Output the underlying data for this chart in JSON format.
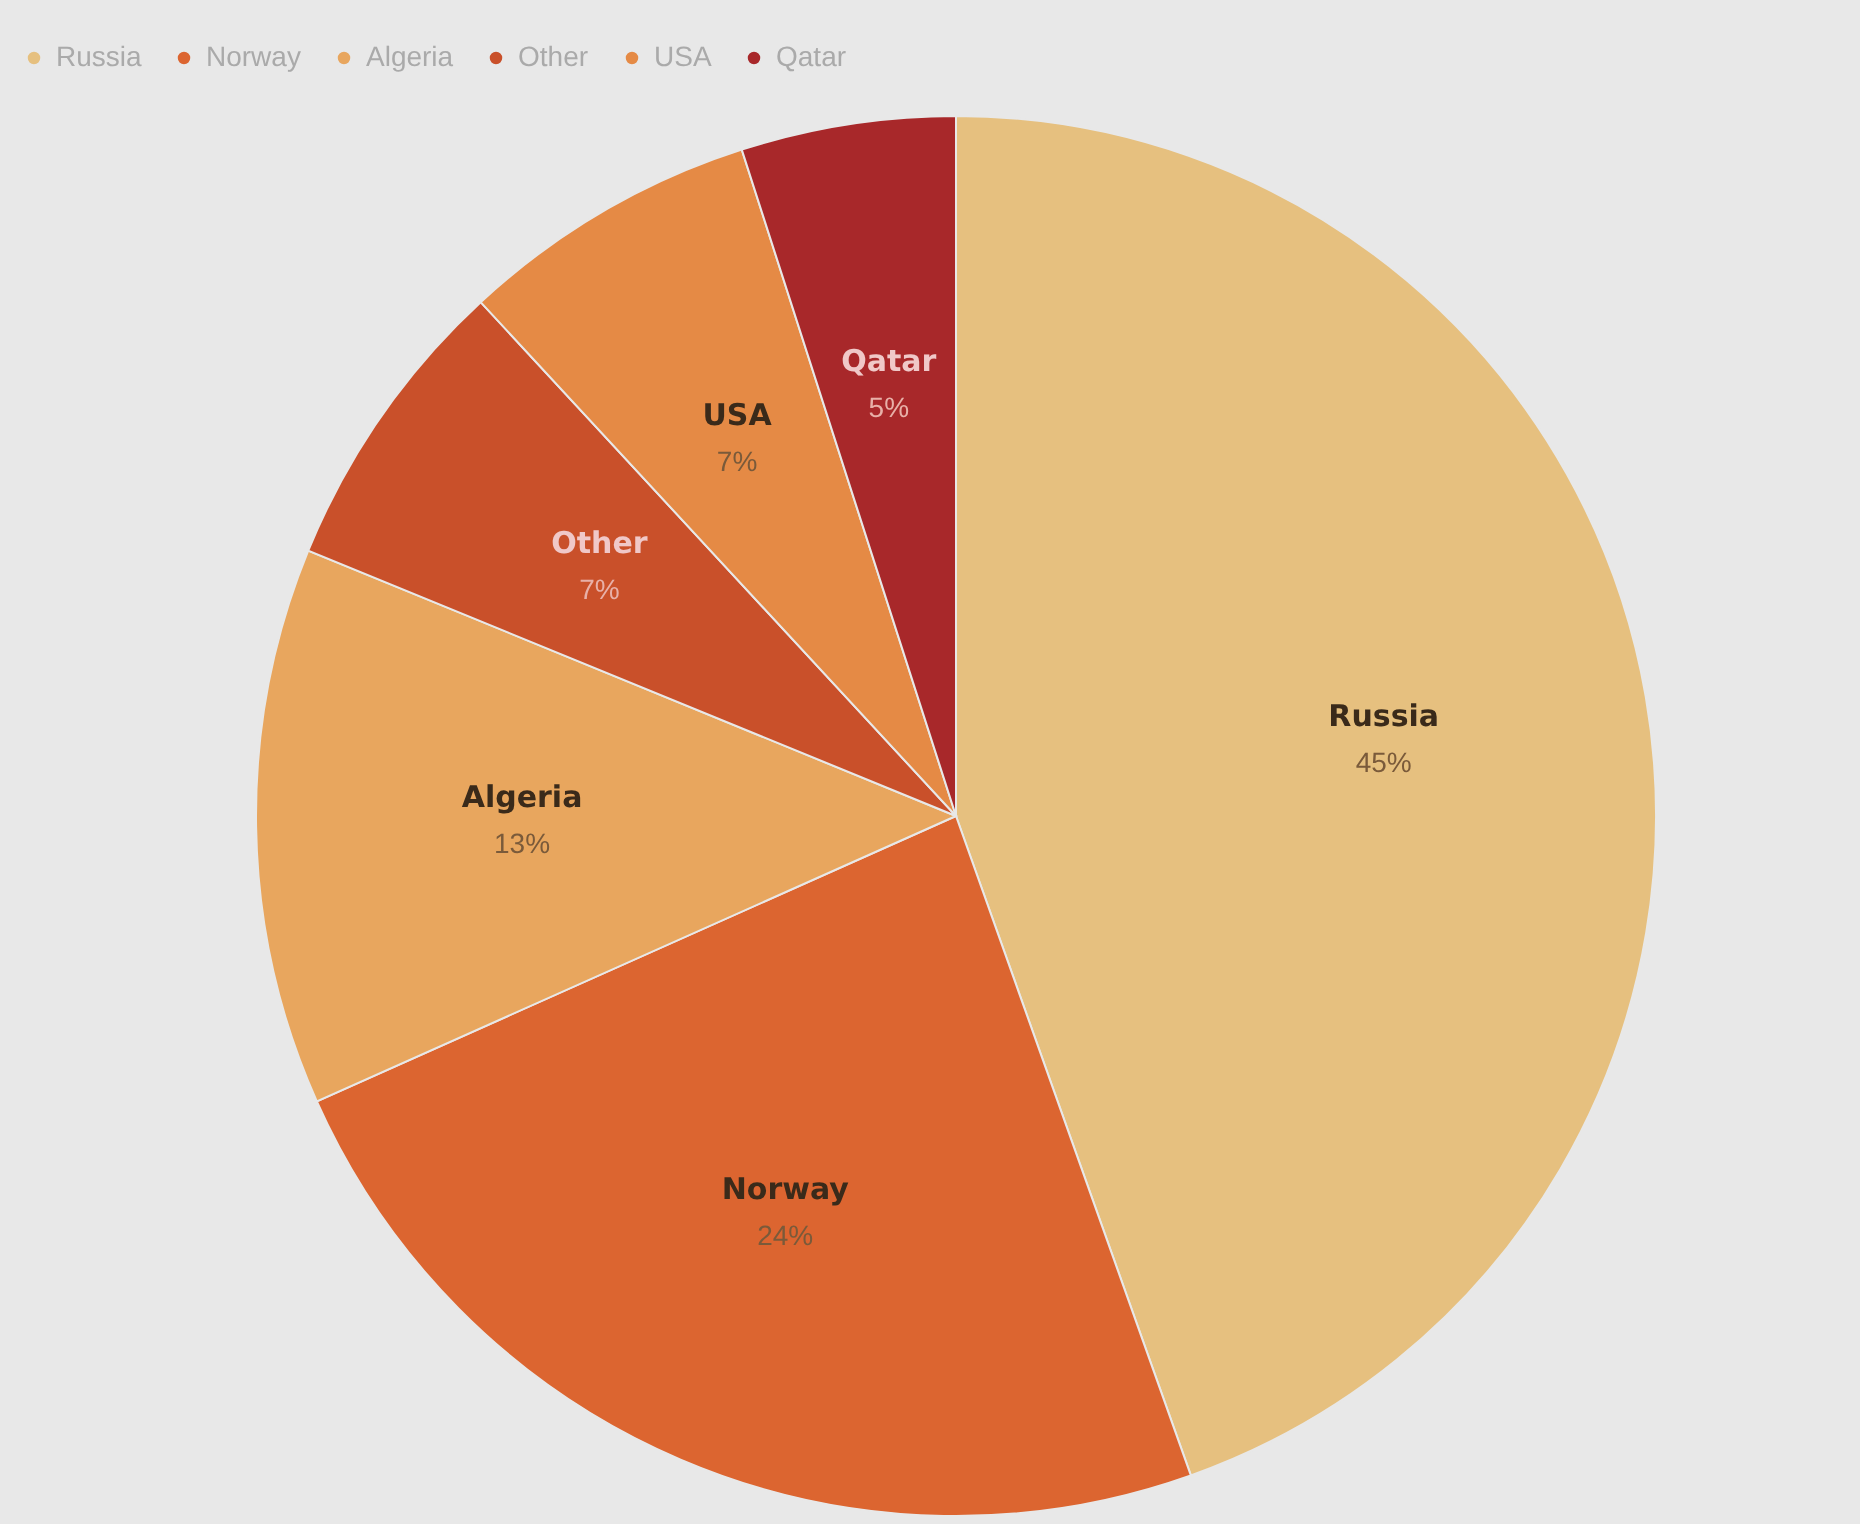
{
  "chart_data": {
    "type": "pie",
    "categories": [
      "Russia",
      "Norway",
      "Algeria",
      "Other",
      "USA",
      "Qatar"
    ],
    "values": [
      45,
      24,
      13,
      7,
      7,
      5
    ],
    "value_labels": [
      "45%",
      "24%",
      "13%",
      "7%",
      "7%",
      "5%"
    ],
    "colors": [
      "#e6c07f",
      "#dc6530",
      "#e8a65e",
      "#c9502a",
      "#e58a45",
      "#a8282a"
    ],
    "legend": "top left"
  }
}
